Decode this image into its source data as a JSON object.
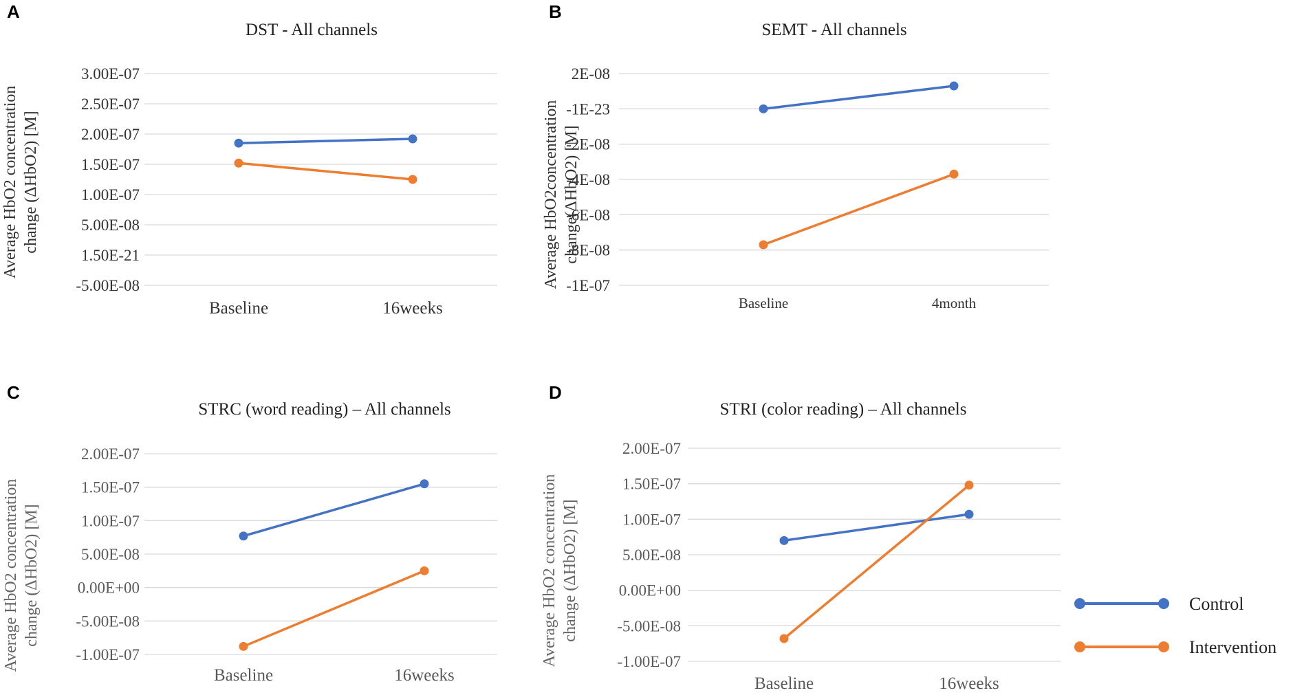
{
  "colors": {
    "control": "#4472C4",
    "intervention": "#ED7D31"
  },
  "legend": {
    "items": [
      {
        "label": "Control",
        "color": "#4472C4"
      },
      {
        "label": "Intervention",
        "color": "#ED7D31"
      }
    ]
  },
  "chart_data": [
    {
      "panel": "A",
      "type": "line",
      "title": "DST - All channels",
      "xlabel": "",
      "ylabel_lines": [
        "Average HbO2 concentration",
        "change (ΔHbO2) [M]"
      ],
      "categories": [
        "Baseline",
        "16weeks"
      ],
      "ytick_values": [
        3e-07,
        2.5e-07,
        2e-07,
        1.5e-07,
        1e-07,
        5e-08,
        0,
        -5e-08
      ],
      "ytick_labels": [
        "3.00E-07",
        "2.50E-07",
        "2.00E-07",
        "1.50E-07",
        "1.00E-07",
        "5.00E-08",
        "1.50E-21",
        "-5.00E-08"
      ],
      "ylim": [
        -5e-08,
        3e-07
      ],
      "series": [
        {
          "name": "Control",
          "key": "control",
          "values": [
            1.85e-07,
            1.92e-07
          ]
        },
        {
          "name": "Intervention",
          "key": "intervention",
          "values": [
            1.52e-07,
            1.25e-07
          ]
        }
      ]
    },
    {
      "panel": "B",
      "type": "line",
      "title": "SEMT - All channels",
      "xlabel": "",
      "ylabel_lines": [
        "Average HbO2concentration",
        "change(ΔHbO2) [M]"
      ],
      "categories": [
        "Baseline",
        "4month"
      ],
      "ytick_values": [
        2e-08,
        0,
        -2e-08,
        -4e-08,
        -6e-08,
        -8e-08,
        -1e-07
      ],
      "ytick_labels": [
        "2E-08",
        "-1E-23",
        "-2E-08",
        "-4E-08",
        "-6E-08",
        "-8E-08",
        "-1E-07"
      ],
      "ylim": [
        -1e-07,
        2e-08
      ],
      "series": [
        {
          "name": "Control",
          "key": "control",
          "values": [
            0.0,
            1.3e-08
          ]
        },
        {
          "name": "Intervention",
          "key": "intervention",
          "values": [
            -7.7e-08,
            -3.7e-08
          ]
        }
      ]
    },
    {
      "panel": "C",
      "type": "line",
      "title": "STRC (word reading) – All channels",
      "xlabel": "",
      "ylabel_lines": [
        "Average HbO2 concentration",
        "change (ΔHbO2) [M]"
      ],
      "categories": [
        "Baseline",
        "16weeks"
      ],
      "ytick_values": [
        2e-07,
        1.5e-07,
        1e-07,
        5e-08,
        0,
        -5e-08,
        -1e-07
      ],
      "ytick_labels": [
        "2.00E-07",
        "1.50E-07",
        "1.00E-07",
        "5.00E-08",
        "0.00E+00",
        "-5.00E-08",
        "-1.00E-07"
      ],
      "ylim": [
        -1e-07,
        2e-07
      ],
      "series": [
        {
          "name": "Control",
          "key": "control",
          "values": [
            7.7e-08,
            1.55e-07
          ]
        },
        {
          "name": "Intervention",
          "key": "intervention",
          "values": [
            -8.8e-08,
            2.5e-08
          ]
        }
      ]
    },
    {
      "panel": "D",
      "type": "line",
      "title": "STRI (color reading) – All channels",
      "xlabel": "",
      "ylabel_lines": [
        "Average HbO2 concentration",
        "change (ΔHbO2) [M]"
      ],
      "categories": [
        "Baseline",
        "16weeks"
      ],
      "ytick_values": [
        2e-07,
        1.5e-07,
        1e-07,
        5e-08,
        0,
        -5e-08,
        -1e-07
      ],
      "ytick_labels": [
        "2.00E-07",
        "1.50E-07",
        "1.00E-07",
        "5.00E-08",
        "0.00E+00",
        "-5.00E-08",
        "-1.00E-07"
      ],
      "ylim": [
        -1e-07,
        2e-07
      ],
      "series": [
        {
          "name": "Control",
          "key": "control",
          "values": [
            7e-08,
            1.07e-07
          ]
        },
        {
          "name": "Intervention",
          "key": "intervention",
          "values": [
            -6.8e-08,
            1.48e-07
          ]
        }
      ]
    }
  ]
}
